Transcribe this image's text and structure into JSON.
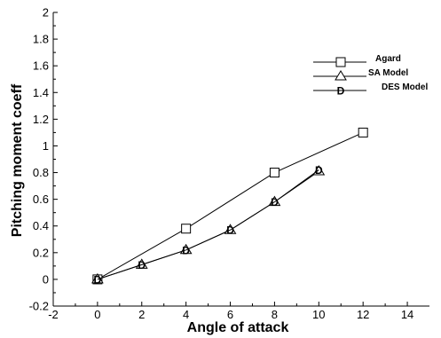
{
  "chart_data": {
    "type": "line",
    "title": "",
    "xlabel": "Angle of attack",
    "ylabel": "Pitching moment coeff",
    "xlim": [
      -2,
      15
    ],
    "ylim": [
      -0.2,
      2
    ],
    "xticks": [
      -2,
      0,
      2,
      4,
      6,
      8,
      10,
      12,
      14
    ],
    "yticks": [
      -0.2,
      0,
      0.2,
      0.4,
      0.6,
      0.8,
      1,
      1.2,
      1.4,
      1.6,
      1.8,
      2
    ],
    "grid": false,
    "legend_position": "top-right",
    "series": [
      {
        "name": "Agard",
        "marker": "square",
        "color": "#000000",
        "x": [
          0,
          4,
          8,
          12
        ],
        "y": [
          0,
          0.38,
          0.8,
          1.1
        ]
      },
      {
        "name": "SA Model",
        "marker": "triangle",
        "color": "#000000",
        "x": [
          0,
          2,
          4,
          6,
          8,
          10
        ],
        "y": [
          0,
          0.11,
          0.22,
          0.37,
          0.58,
          0.81
        ]
      },
      {
        "name": "DES Model",
        "marker": "D",
        "color": "#000000",
        "x": [
          0,
          2,
          4,
          6,
          8,
          10
        ],
        "y": [
          0,
          0.11,
          0.22,
          0.37,
          0.58,
          0.82
        ]
      }
    ]
  }
}
